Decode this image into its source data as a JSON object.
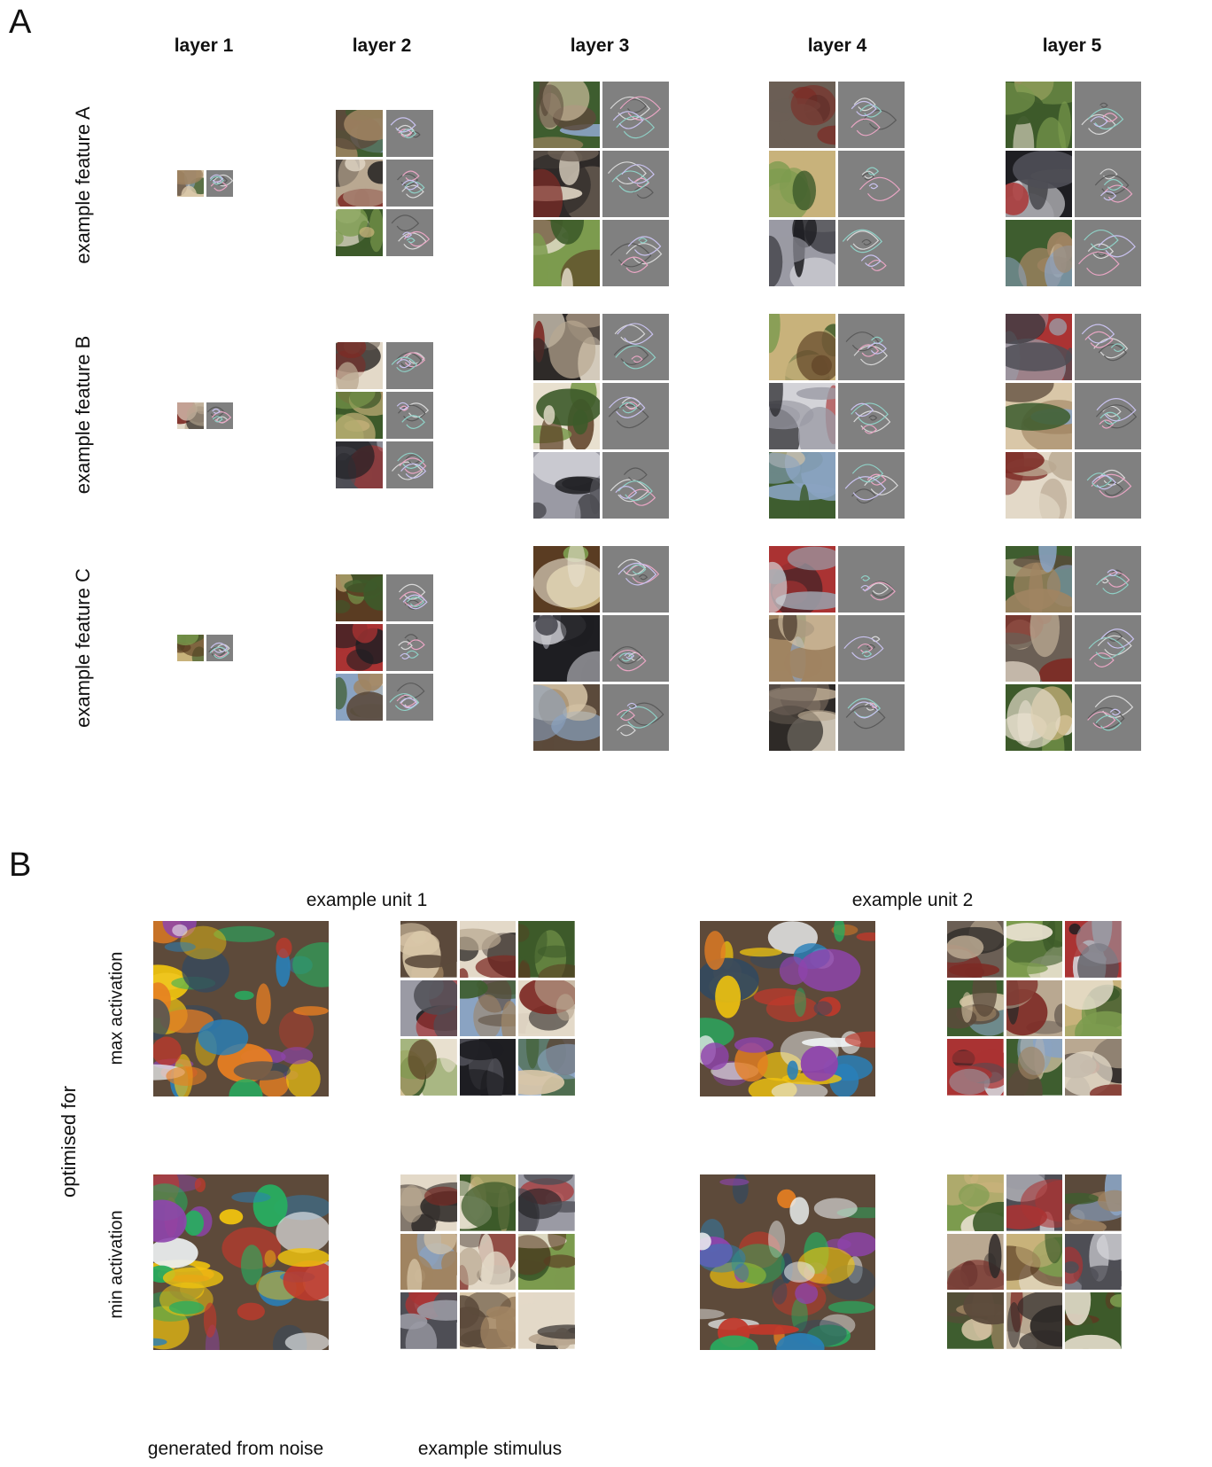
{
  "panel_a": {
    "letter": "A",
    "layers": [
      "layer 1",
      "layer 2",
      "layer 3",
      "layer 4",
      "layer 5"
    ],
    "features": [
      "example feature A",
      "example feature B",
      "example feature C"
    ]
  },
  "panel_b": {
    "letter": "B",
    "units": [
      "example unit 1",
      "example unit 2"
    ],
    "optimised_for": "optimised for",
    "rows": [
      "max activation",
      "min activation"
    ],
    "captions": [
      "generated from noise",
      "example stimulus"
    ]
  }
}
